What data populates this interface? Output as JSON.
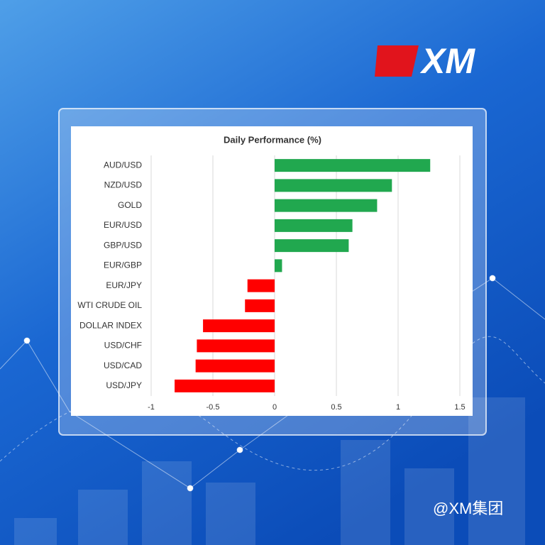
{
  "logo": "XM",
  "watermark": "@XM集团",
  "chart_data": {
    "type": "bar",
    "orientation": "horizontal",
    "title": "Daily Performance (%)",
    "categories": [
      "AUD/USD",
      "NZD/USD",
      "GOLD",
      "EUR/USD",
      "GBP/USD",
      "EUR/GBP",
      "EUR/JPY",
      "WTI CRUDE OIL",
      "DOLLAR INDEX",
      "USD/CHF",
      "USD/CAD",
      "USD/JPY"
    ],
    "values": [
      1.26,
      0.95,
      0.83,
      0.63,
      0.6,
      0.06,
      -0.22,
      -0.24,
      -0.58,
      -0.63,
      -0.64,
      -0.81
    ],
    "positive_color": "#21a84f",
    "negative_color": "#ff0000",
    "xlim": [
      -1,
      1.5
    ],
    "xticks": [
      -1,
      -0.5,
      0,
      0.5,
      1,
      1.5
    ],
    "grid": true
  }
}
